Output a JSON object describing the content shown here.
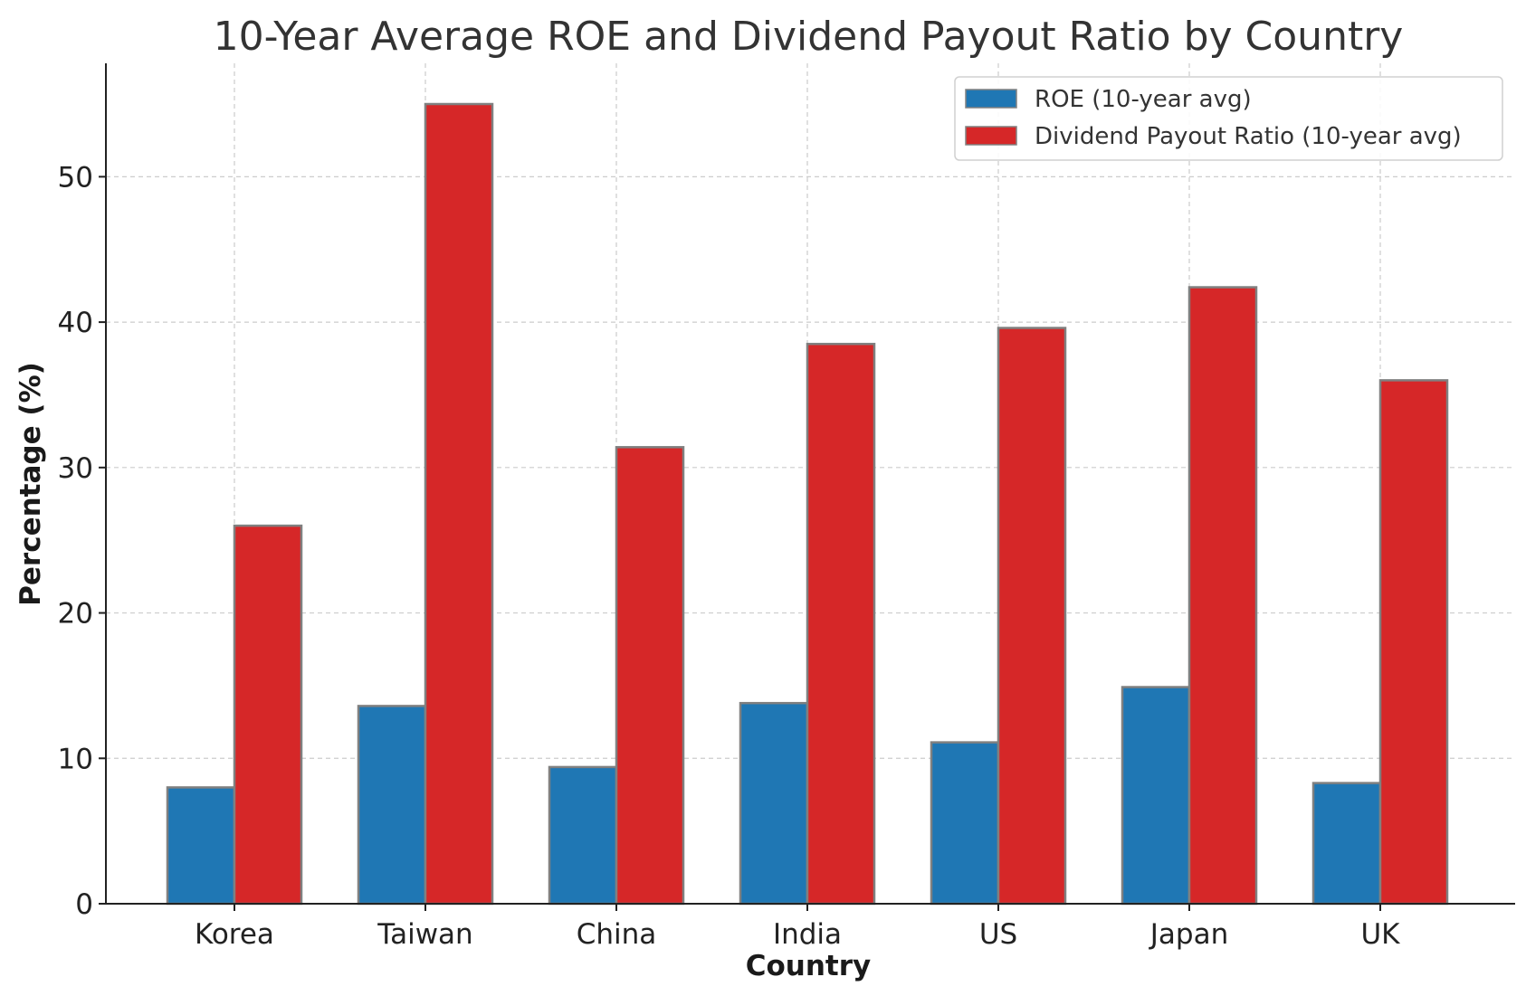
{
  "chart_data": {
    "type": "bar",
    "title": "10-Year Average ROE and Dividend Payout Ratio by Country",
    "xlabel": "Country",
    "ylabel": "Percentage (%)",
    "categories": [
      "Korea",
      "Taiwan",
      "China",
      "India",
      "US",
      "Japan",
      "UK"
    ],
    "series": [
      {
        "name": "ROE (10-year avg)",
        "color": "#1f77b4",
        "values": [
          8.0,
          13.6,
          9.4,
          13.8,
          11.1,
          14.9,
          8.3
        ]
      },
      {
        "name": "Dividend Payout Ratio (10-year avg)",
        "color": "#d62728",
        "values": [
          26.0,
          55.0,
          31.4,
          38.5,
          39.6,
          42.4,
          36.0
        ]
      }
    ],
    "ylim": [
      0,
      57.8
    ],
    "yticks": [
      0,
      10,
      20,
      30,
      40,
      50
    ],
    "grid": true,
    "legend": "top-right",
    "bar_edge_color": "#808080",
    "grid_color": "#cccccc"
  }
}
